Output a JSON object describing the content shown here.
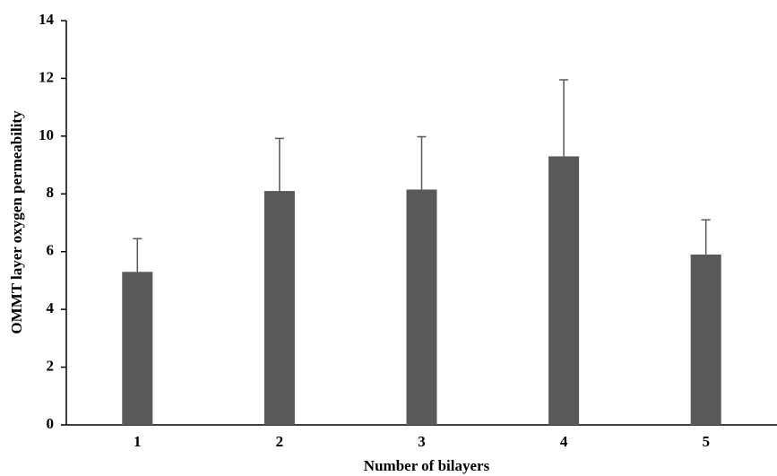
{
  "chart_data": {
    "type": "bar",
    "x_label": "Number of bilayers",
    "y_label": "OMMT layer oxygen permeability",
    "categories": [
      "1",
      "2",
      "3",
      "4",
      "5"
    ],
    "values": [
      5.3,
      8.1,
      8.15,
      9.3,
      5.9
    ],
    "errors": [
      1.15,
      1.82,
      1.83,
      2.65,
      1.2
    ],
    "color": "#595959",
    "ylim": [
      0,
      14
    ],
    "yticks": [
      0,
      2,
      4,
      6,
      8,
      10,
      12,
      14
    ]
  }
}
